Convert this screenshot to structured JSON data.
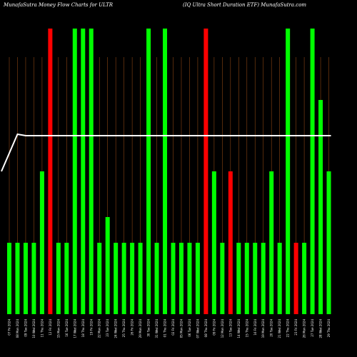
{
  "header": {
    "left_title": "MunafaSutra  Money Flow  Charts for ULTR",
    "right_title": "(IQ Ultra  Short Duration  ETF) MunafaSutra.com"
  },
  "colors": {
    "background": "#000000",
    "up_bar": "#00ff00",
    "down_bar": "#ff0000",
    "grid": "#8b4513",
    "line": "#ffffff"
  },
  "chart_data": {
    "type": "bar",
    "title": "MunafaSutra  Money Flow  Charts for ULTR",
    "subtitle": "(IQ Ultra  Short Duration  ETF) MunafaSutra.com",
    "ylim": [
      0,
      100
    ],
    "grid": "vertical",
    "categories": [
      "07 Fri 2024",
      "08 Mon 2024",
      "09 Tue 2024",
      "10 Wed 2024",
      "11 Thu 2024",
      "12 Fri 2024",
      "15 Mon 2024",
      "16 Tue 2024",
      "17 Wed 2024",
      "18 Thu 2024",
      "19 Fri 2024",
      "22 Mon 2024",
      "23 Tue 2024",
      "24 Wed 2024",
      "25 Thu 2024",
      "26 Fri 2024",
      "29 Mon 2024",
      "30 Tue 2024",
      "31 Wed 2024",
      "01 Thu 2024",
      "02 Fri 2024",
      "05 Mon 2024",
      "06 Tue 2024",
      "07 Wed 2024",
      "08 Thu 2024",
      "09 Fri 2024",
      "12 Mon 2024",
      "13 Tue 2024",
      "14 Wed 2024",
      "15 Thu 2024",
      "16 Fri 2024",
      "19 Mon 2024",
      "20 Tue 2024",
      "21 Wed 2024",
      "22 Thu 2024",
      "23 Fri 2024",
      "26 Mon 2024",
      "27 Tue 2024",
      "28 Wed 2024",
      "29 Thu 2024"
    ],
    "values": [
      25,
      25,
      25,
      25,
      50,
      100,
      25,
      25,
      100,
      100,
      100,
      25,
      34,
      25,
      25,
      25,
      25,
      100,
      25,
      100,
      25,
      25,
      25,
      25,
      100,
      50,
      25,
      50,
      25,
      25,
      25,
      25,
      50,
      25,
      100,
      25,
      25,
      100,
      75,
      50
    ],
    "colors": [
      "up",
      "up",
      "up",
      "up",
      "up",
      "down",
      "up",
      "up",
      "up",
      "up",
      "up",
      "up",
      "up",
      "up",
      "up",
      "up",
      "up",
      "up",
      "up",
      "up",
      "up",
      "up",
      "up",
      "up",
      "down",
      "up",
      "up",
      "down",
      "up",
      "up",
      "up",
      "up",
      "up",
      "up",
      "up",
      "down",
      "up",
      "up",
      "up",
      "up"
    ],
    "line": [
      50,
      63,
      62.5,
      62.5,
      62.5,
      62.5,
      62.5,
      62.5,
      62.5,
      62.5,
      62.5,
      62.5,
      62.5,
      62.5,
      62.5,
      62.5,
      62.5,
      62.5,
      62.5,
      62.5,
      62.5,
      62.5,
      62.5,
      62.5,
      62.5,
      62.5,
      62.5,
      62.5,
      62.5,
      62.5,
      62.5,
      62.5,
      62.5,
      62.5,
      62.5,
      62.5,
      62.5,
      62.5,
      62.5,
      62.5
    ]
  }
}
